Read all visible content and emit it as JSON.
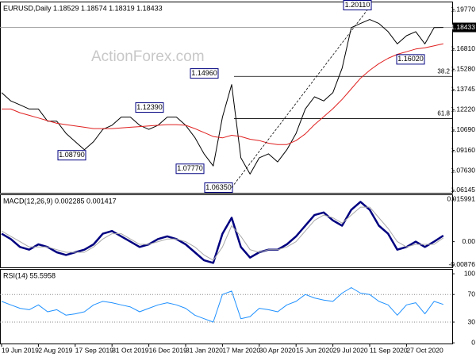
{
  "chart_data": [
    {
      "type": "line",
      "header": "EURUSD,Daily  1.18529 1.18574 1.18319 1.18433",
      "watermark": "ActionForex.com",
      "categories": [
        "19 Jun 2019",
        null,
        null,
        null,
        "2 Aug 2019",
        null,
        null,
        null,
        "17 Sep 2019",
        null,
        null,
        null,
        "31 Oct 2019",
        null,
        null,
        null,
        "16 Dec 2019",
        null,
        null,
        null,
        "31 Jan 2020",
        null,
        null,
        null,
        "17 Mar 2020",
        null,
        null,
        null,
        "30 Apr 2020",
        null,
        null,
        null,
        "15 Jun 2020",
        null,
        null,
        null,
        "29 Jul 2020",
        null,
        null,
        null,
        "11 Sep 2020",
        null,
        null,
        null,
        "27 Oct 2020",
        null,
        null,
        null,
        null
      ],
      "series": [
        {
          "color": "#000000",
          "values": [
            1.1351,
            1.1289,
            1.1259,
            1.1228,
            1.1228,
            1.1136,
            1.1136,
            1.1044,
            1.0982,
            1.0921,
            1.0982,
            1.1074,
            1.1105,
            1.1167,
            1.1167,
            1.1105,
            1.1074,
            1.1105,
            1.1167,
            1.1167,
            1.1105,
            1.1013,
            1.089,
            1.0798,
            1.1167,
            1.1412,
            1.086,
            1.0737,
            1.086,
            1.089,
            1.0829,
            1.0921,
            1.1044,
            1.1228,
            1.132,
            1.1289,
            1.1351,
            1.1535,
            1.1842,
            1.1873,
            1.1903,
            1.1873,
            1.1811,
            1.1719,
            1.1781,
            1.1811,
            1.1719,
            1.1842,
            1.1843
          ]
        },
        {
          "color": "#e02020",
          "values": [
            1.1228,
            1.1228,
            1.12,
            1.118,
            1.116,
            1.114,
            1.112,
            1.111,
            1.11,
            1.109,
            1.108,
            1.108,
            1.108,
            1.1085,
            1.109,
            1.1095,
            1.11,
            1.1105,
            1.111,
            1.111,
            1.1105,
            1.108,
            1.105,
            1.102,
            1.101,
            1.103,
            1.102,
            1.1,
            1.099,
            1.097,
            1.096,
            1.096,
            1.099,
            1.104,
            1.111,
            1.117,
            1.123,
            1.13,
            1.138,
            1.146,
            1.152,
            1.157,
            1.161,
            1.164,
            1.166,
            1.168,
            1.169,
            1.1705,
            1.172
          ]
        }
      ],
      "ylim": [
        1.0596,
        1.2038
      ],
      "yticks": [
        {
          "value": 1.1977,
          "label": "1.19770"
        },
        {
          "value": 1.1681,
          "label": "1.16810"
        },
        {
          "value": 1.1528,
          "label": "1.15280"
        },
        1.13745,
        {
          "value": 1.1222,
          "label": "1.12220"
        },
        {
          "value": 1.1069,
          "label": "1.10690"
        },
        {
          "value": 1.0916,
          "label": "1.09160"
        },
        {
          "value": 1.0763,
          "label": "1.07630"
        },
        1.06145
      ],
      "last_price": {
        "value": 1.18433,
        "label": "1.18433"
      },
      "annotations": [
        {
          "value": 1.2011,
          "label": "1.20110"
        },
        {
          "value": 1.1602,
          "label": "1.16020"
        },
        {
          "value": 1.1496,
          "label": "1.14960"
        },
        {
          "value": 1.1239,
          "label": "1.12390"
        },
        {
          "value": 1.0879,
          "label": "1.08790"
        },
        {
          "value": 1.0777,
          "label": "1.07770"
        },
        {
          "value": 1.0635,
          "label": "1.06350"
        }
      ],
      "fib_levels": [
        {
          "level": 38.2,
          "price": 1.1474
        },
        {
          "level": 61.8,
          "price": 1.1155
        }
      ]
    },
    {
      "type": "line",
      "header": "MACD(12,26,9) 0.002285 0.001417",
      "series": [
        {
          "color": "#000080",
          "values": [
            0.003,
            0.001,
            -0.002,
            -0.003,
            -0.001,
            -0.002,
            -0.004,
            -0.005,
            -0.004,
            -0.003,
            -0.001,
            0.003,
            0.004,
            0.002,
            0.0,
            -0.002,
            -0.001,
            0.001,
            0.002,
            0.001,
            -0.001,
            -0.004,
            -0.007,
            -0.008,
            0.003,
            0.009,
            -0.002,
            -0.006,
            -0.004,
            -0.003,
            -0.003,
            -0.001,
            0.002,
            0.006,
            0.01,
            0.011,
            0.008,
            0.006,
            0.012,
            0.015,
            0.012,
            0.006,
            0.003,
            -0.003,
            -0.002,
            0.0,
            -0.002,
            0.0,
            0.002285
          ]
        },
        {
          "color": "#a8a8a8",
          "values": [
            0.004,
            0.002,
            0.0,
            -0.002,
            -0.002,
            -0.002,
            -0.003,
            -0.004,
            -0.004,
            -0.004,
            -0.002,
            0.001,
            0.003,
            0.003,
            0.001,
            -0.001,
            -0.001,
            0.0,
            0.001,
            0.001,
            0.0,
            -0.002,
            -0.005,
            -0.007,
            -0.002,
            0.006,
            0.002,
            -0.003,
            -0.004,
            -0.003,
            -0.003,
            -0.002,
            0.0,
            0.004,
            0.008,
            0.01,
            0.009,
            0.007,
            0.01,
            0.013,
            0.013,
            0.009,
            0.005,
            0.0,
            -0.002,
            -0.001,
            -0.001,
            -0.001,
            0.001417
          ]
        }
      ],
      "ylim": [
        -0.00966,
        0.0178
      ],
      "yticks": [
        0.015991,
        {
          "value": 0,
          "label": "0.00"
        },
        -0.00876
      ]
    },
    {
      "type": "line",
      "header": "RSI(14) 55.5958",
      "series": [
        {
          "color": "#1e90ff",
          "values": [
            60,
            55,
            50,
            48,
            55,
            45,
            48,
            40,
            42,
            45,
            55,
            60,
            58,
            55,
            52,
            45,
            50,
            55,
            58,
            55,
            50,
            40,
            35,
            30,
            70,
            75,
            35,
            38,
            50,
            48,
            45,
            55,
            60,
            70,
            65,
            62,
            60,
            72,
            80,
            72,
            70,
            60,
            55,
            40,
            55,
            58,
            42,
            60,
            55.5958
          ]
        }
      ],
      "ylim": [
        -1,
        107
      ],
      "yticks": [
        100,
        70,
        30,
        0
      ]
    }
  ]
}
